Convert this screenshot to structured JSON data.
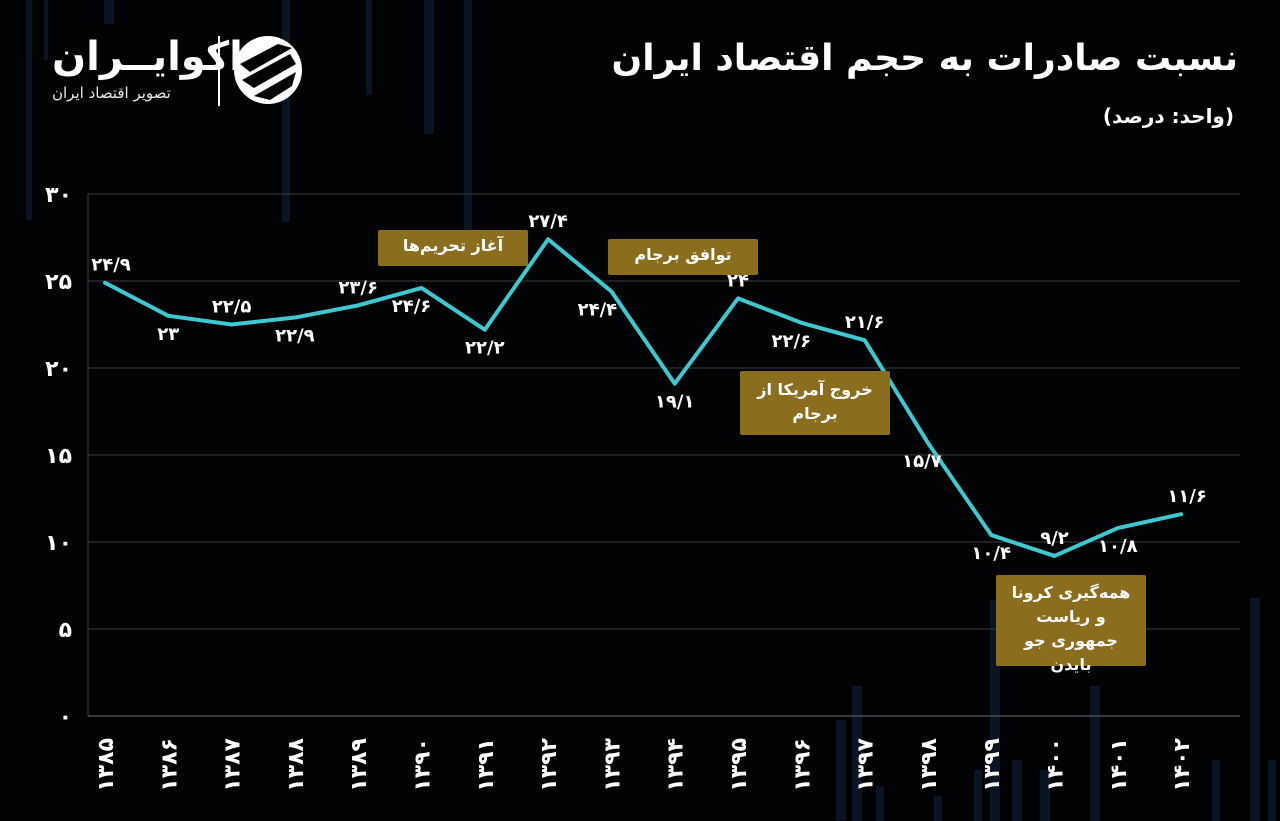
{
  "header": {
    "title": "نسبت صادرات به حجم اقتصاد ایران",
    "unit": "(واحد: درصد)"
  },
  "brand": {
    "name": "اکوایــران",
    "tagline": "تصویر اقتصاد ایران",
    "logo_icon": "ecoiran-logo-icon"
  },
  "colors": {
    "background": "#020305",
    "line": "#3ec8cf",
    "annotation_box": "#8a6e1d",
    "grid": "#3a3d42"
  },
  "annotations": [
    {
      "text": "آغاز تحریم‌ها"
    },
    {
      "text": "توافق برجام"
    },
    {
      "text": "خروج آمریکا از برجام"
    },
    {
      "text": "همه‌گیری کرونا و ریاست جمهوری جو بایدن"
    }
  ],
  "chart_data": {
    "type": "line",
    "title": "نسبت صادرات به حجم اقتصاد ایران",
    "unit": "(واحد: درصد)",
    "categories": [
      "۱۳۸۵",
      "۱۳۸۶",
      "۱۳۸۷",
      "۱۳۸۸",
      "۱۳۸۹",
      "۱۳۹۰",
      "۱۳۹۱",
      "۱۳۹۲",
      "۱۳۹۳",
      "۱۳۹۴",
      "۱۳۹۵",
      "۱۳۹۶",
      "۱۳۹۷",
      "۱۳۹۸",
      "۱۳۹۹",
      "۱۴۰۰",
      "۱۴۰۱",
      "۱۴۰۲"
    ],
    "values": [
      24.9,
      23,
      22.5,
      22.9,
      23.6,
      24.6,
      22.2,
      27.4,
      24.4,
      19.1,
      24,
      22.6,
      21.6,
      15.7,
      10.4,
      9.2,
      10.8,
      11.6
    ],
    "value_labels": [
      "۲۴/۹",
      "۲۳",
      "۲۲/۵",
      "۲۲/۹",
      "۲۳/۶",
      "۲۴/۶",
      "۲۲/۲",
      "۲۷/۴",
      "۲۴/۴",
      "۱۹/۱",
      "۲۴",
      "۲۲/۶",
      "۲۱/۶",
      "۱۵/۷",
      "۱۰/۴",
      "۹/۲",
      "۱۰/۸",
      "۱۱/۶"
    ],
    "yticks": [
      0,
      5,
      10,
      15,
      20,
      25,
      30
    ],
    "ytick_labels": [
      "۰",
      "۵",
      "۱۰",
      "۱۵",
      "۲۰",
      "۲۵",
      "۳۰"
    ],
    "ylim": [
      0,
      30
    ],
    "grid": true,
    "legend": "none"
  }
}
